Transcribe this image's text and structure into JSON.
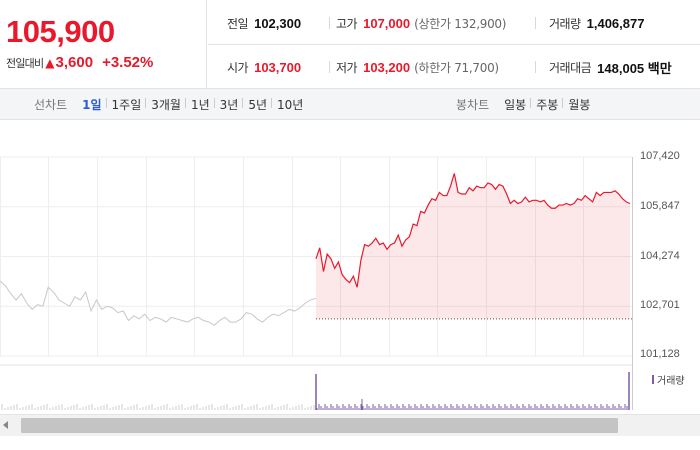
{
  "quote": {
    "price": "105,900",
    "change_caption": "전일대비",
    "change_amount": "3,600",
    "change_percent": "+3.52%",
    "direction": "up",
    "accent_color": "#e8192c"
  },
  "stats": {
    "prev_close": {
      "label": "전일",
      "value": "102,300"
    },
    "high": {
      "label": "고가",
      "value": "107,000",
      "sub": "(상한가 132,900)"
    },
    "volume": {
      "label": "거래량",
      "value": "1,406,877"
    },
    "open": {
      "label": "시가",
      "value": "103,700"
    },
    "low": {
      "label": "저가",
      "value": "103,200",
      "sub": "(하한가 71,700)"
    },
    "trade_value": {
      "label": "거래대금",
      "value": "148,005 백만"
    }
  },
  "toolbar": {
    "line_chart_label": "선차트",
    "line_periods": [
      "1일",
      "1주일",
      "3개월",
      "1년",
      "3년",
      "5년",
      "10년"
    ],
    "active_period": "1일",
    "candle_chart_label": "봉차트",
    "candle_periods": [
      "일봉",
      "주봉",
      "월봉"
    ]
  },
  "chart": {
    "y_ticks": [
      "107,420",
      "105,847",
      "104,274",
      "102,701",
      "101,128"
    ],
    "volume_legend": "거래량"
  },
  "chart_data": {
    "type": "line",
    "ylim": [
      101128,
      107420
    ],
    "reference_price": 102300,
    "series": [
      {
        "values": [
          103500,
          103350,
          103100,
          102900,
          103100,
          102800,
          102600,
          102750,
          102700,
          103300,
          103150,
          102900,
          102800,
          102700,
          103000,
          102900,
          103150,
          102550,
          102900,
          102600,
          102700,
          102650,
          102500,
          102550,
          102250,
          102400,
          102300,
          102450,
          102250,
          102350,
          102300,
          102200,
          102350,
          102300,
          102250,
          102200,
          102300,
          102350,
          102250,
          102200,
          102100,
          102250,
          102350,
          102200,
          102200,
          102300,
          102500,
          102450,
          102300,
          102200,
          102350,
          102450,
          102400,
          102500,
          102600,
          102550,
          102650,
          102800,
          102900,
          102950
        ]
      },
      {
        "values": [
          104200,
          104550,
          103800,
          104350,
          104200,
          103900,
          104100,
          103700,
          103550,
          103450,
          103650,
          103300,
          104150,
          104650,
          104600,
          104700,
          104850,
          104650,
          104700,
          104500,
          104650,
          104700,
          104950,
          104600,
          104800,
          104900,
          105300,
          105250,
          105700,
          105650,
          105900,
          106100,
          106050,
          106300,
          106200,
          106200,
          106500,
          106900,
          106300,
          106250,
          106250,
          106450,
          106350,
          106500,
          106450,
          106450,
          106600,
          106550,
          106400,
          106550,
          106500,
          106250,
          105950,
          106050,
          105950,
          106000,
          106150,
          106000,
          106050,
          106050,
          106000,
          106050,
          105900,
          105800,
          105800,
          105900,
          105900,
          105950,
          105900,
          105950,
          106100,
          106050,
          106200,
          106100,
          106000,
          106300,
          106200,
          106300,
          106300,
          106300,
          106350,
          106250,
          106100,
          106000,
          105950
        ]
      }
    ]
  }
}
